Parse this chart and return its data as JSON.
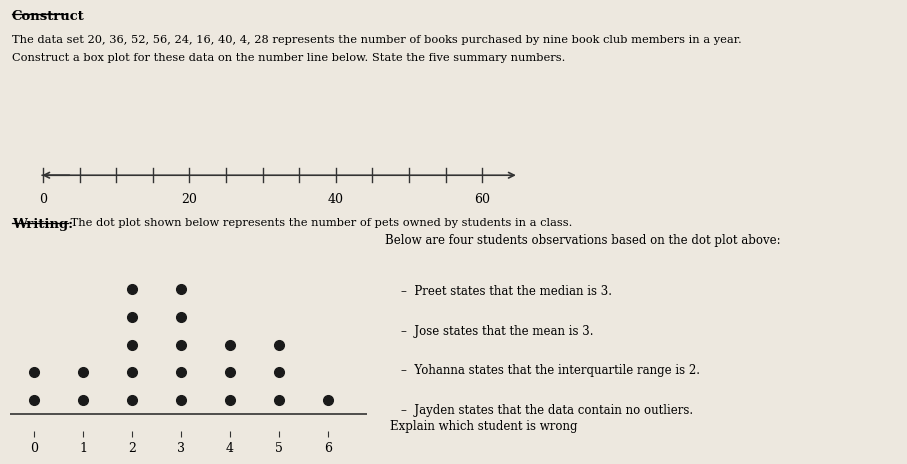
{
  "background_color": "#ede8df",
  "title_top": "Construct",
  "construct_text_line1": "The data set 20, 36, 52, 56, 24, 16, 40, 4, 28 represents the number of books purchased by nine book club members in a year.",
  "construct_text_line2": "Construct a box plot for these data on the number line below. State the five summary numbers.",
  "number_line_ticks": [
    0,
    5,
    10,
    15,
    20,
    25,
    30,
    35,
    40,
    45,
    50,
    55,
    60
  ],
  "number_line_labels": [
    "0",
    "",
    "",
    "",
    "20",
    "",
    "",
    "",
    "40",
    "",
    "",
    "",
    "60"
  ],
  "writing_label": "Writing:",
  "writing_text": " The dot plot shown below represents the number of pets owned by students in a class.",
  "dot_plot_data": {
    "0": 2,
    "1": 2,
    "2": 5,
    "3": 5,
    "4": 3,
    "5": 3,
    "6": 1
  },
  "dot_plot_xlabel_vals": [
    0,
    1,
    2,
    3,
    4,
    5,
    6
  ],
  "right_text_title": "Below are four students observations based on the dot plot above:",
  "right_text_bullets": [
    "Preet states that the median is 3.",
    "Jose states that the mean is 3.",
    "Yohanna states that the interquartile range is 2.",
    "Jayden states that the data contain no outliers."
  ],
  "explain_text": "Explain which student is wrong",
  "text_color": "#000000",
  "dot_color": "#1a1a1a",
  "line_color": "#333333"
}
